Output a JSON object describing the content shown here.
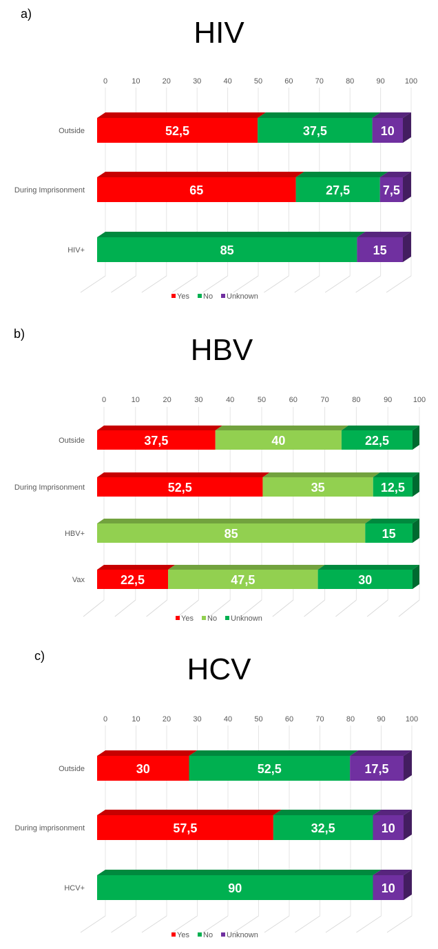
{
  "colors": {
    "yes": "#ff0000",
    "no_hiv_hcv": "#00b050",
    "no_hbv": "#92d050",
    "unknown_hiv_hcv": "#7030a0",
    "unknown_hbv": "#00b050"
  },
  "chart_data": [
    {
      "panel_label": "a)",
      "type": "bar",
      "orientation": "horizontal",
      "stacked": true,
      "title": "HIV",
      "xlim": [
        0,
        100
      ],
      "xticks": [
        "0",
        "10",
        "20",
        "30",
        "40",
        "50",
        "60",
        "70",
        "80",
        "90",
        "100"
      ],
      "legend_position": "bottom",
      "categories": [
        "Outside",
        "During Imprisonment",
        "HIV+"
      ],
      "series": [
        {
          "name": "Yes",
          "color": "#ff0000",
          "values": [
            52.5,
            65,
            0
          ],
          "labels": [
            "52,5",
            "65",
            ""
          ]
        },
        {
          "name": "No",
          "color": "#00b050",
          "values": [
            37.5,
            27.5,
            85
          ],
          "labels": [
            "37,5",
            "27,5",
            "85"
          ]
        },
        {
          "name": "Unknown",
          "color": "#7030a0",
          "values": [
            10,
            7.5,
            15
          ],
          "labels": [
            "10",
            "7,5",
            "15"
          ]
        }
      ]
    },
    {
      "panel_label": "b)",
      "type": "bar",
      "orientation": "horizontal",
      "stacked": true,
      "title": "HBV",
      "xlim": [
        0,
        100
      ],
      "xticks": [
        "0",
        "10",
        "20",
        "30",
        "40",
        "50",
        "60",
        "70",
        "80",
        "90",
        "100"
      ],
      "legend_position": "bottom",
      "categories": [
        "Outside",
        "During Imprisonment",
        "HBV+",
        "Vax"
      ],
      "series": [
        {
          "name": "Yes",
          "color": "#ff0000",
          "values": [
            37.5,
            52.5,
            0,
            22.5
          ],
          "labels": [
            "37,5",
            "52,5",
            "",
            "22,5"
          ]
        },
        {
          "name": "No",
          "color": "#92d050",
          "values": [
            40,
            35,
            85,
            47.5
          ],
          "labels": [
            "40",
            "35",
            "85",
            "47,5"
          ]
        },
        {
          "name": "Unknown",
          "color": "#00b050",
          "values": [
            22.5,
            12.5,
            15,
            30
          ],
          "labels": [
            "22,5",
            "12,5",
            "15",
            "30"
          ]
        }
      ]
    },
    {
      "panel_label": "c)",
      "type": "bar",
      "orientation": "horizontal",
      "stacked": true,
      "title": "HCV",
      "xlim": [
        0,
        100
      ],
      "xticks": [
        "0",
        "10",
        "20",
        "30",
        "40",
        "50",
        "60",
        "70",
        "80",
        "90",
        "100"
      ],
      "legend_position": "bottom",
      "categories": [
        "Outside",
        "During imprisonment",
        "HCV+"
      ],
      "series": [
        {
          "name": "Yes",
          "color": "#ff0000",
          "values": [
            30,
            57.5,
            0
          ],
          "labels": [
            "30",
            "57,5",
            ""
          ]
        },
        {
          "name": "No",
          "color": "#00b050",
          "values": [
            52.5,
            32.5,
            90
          ],
          "labels": [
            "52,5",
            "32,5",
            "90"
          ]
        },
        {
          "name": "Unknown",
          "color": "#7030a0",
          "values": [
            17.5,
            10,
            10
          ],
          "labels": [
            "17,5",
            "10",
            "10"
          ]
        }
      ]
    }
  ]
}
